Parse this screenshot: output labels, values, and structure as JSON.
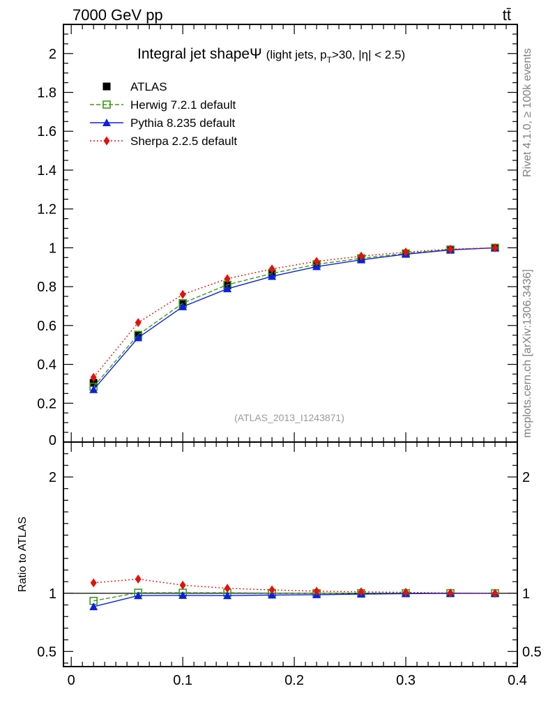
{
  "header": {
    "left": "7000 GeV pp",
    "right": "tt̄"
  },
  "side_text": {
    "rivet": "Rivet 4.1.0, ≥ 100k events",
    "mcplots": "mcplots.cern.ch [arXiv:1306.3436]"
  },
  "chart_data": {
    "type": "line",
    "title": "Integral jet shape",
    "title_symbol": "Ψ",
    "subtitle_parts": {
      "a": "(light jets, p",
      "sub": "T",
      "b": ">30, |η| < 2.5)"
    },
    "analysis_id": "(ATLAS_2013_I1243871)",
    "xlabel": "",
    "ylabel_ratio": "Ratio to ATLAS",
    "xlim": [
      -0.007,
      0.4
    ],
    "ylim_main": [
      0,
      2.15
    ],
    "ylim_ratio": [
      0.37,
      2.3
    ],
    "x_ticks": [
      {
        "v": 0,
        "label": "0"
      },
      {
        "v": 0.1,
        "label": "0.1"
      },
      {
        "v": 0.2,
        "label": "0.2"
      },
      {
        "v": 0.3,
        "label": "0.3"
      },
      {
        "v": 0.4,
        "label": "0.4"
      }
    ],
    "y_ticks_main": [
      {
        "v": 0.2,
        "label": "0.2"
      },
      {
        "v": 0.4,
        "label": "0.4"
      },
      {
        "v": 0.6,
        "label": "0.6"
      },
      {
        "v": 0.8,
        "label": "0.8"
      },
      {
        "v": 1.0,
        "label": "1"
      },
      {
        "v": 1.2,
        "label": "1.2"
      },
      {
        "v": 1.4,
        "label": "1.4"
      },
      {
        "v": 1.6,
        "label": "1.6"
      },
      {
        "v": 1.8,
        "label": "1.8"
      },
      {
        "v": 2.0,
        "label": "2"
      }
    ],
    "y_ticks_ratio": [
      {
        "v": 0.5,
        "label": "0.5"
      },
      {
        "v": 1.0,
        "label": "1"
      },
      {
        "v": 2.0,
        "label": "2"
      }
    ],
    "x": [
      0.02,
      0.06,
      0.1,
      0.14,
      0.18,
      0.22,
      0.26,
      0.3,
      0.34,
      0.38
    ],
    "series": [
      {
        "name": "ATLAS",
        "color": "#000000",
        "marker": "square",
        "values": [
          0.305,
          0.548,
          0.71,
          0.806,
          0.866,
          0.914,
          0.945,
          0.97,
          0.99,
          1.0
        ]
      },
      {
        "name": "Herwig 7.2.1 default",
        "color": "#3a9a14",
        "marker": "open-square",
        "line": "dashed",
        "values": [
          0.285,
          0.552,
          0.715,
          0.81,
          0.868,
          0.915,
          0.946,
          0.971,
          0.991,
          1.0
        ]
      },
      {
        "name": "Pythia 8.235 default",
        "color": "#0a1fe8",
        "marker": "triangle",
        "line": "solid",
        "values": [
          0.27,
          0.537,
          0.697,
          0.789,
          0.853,
          0.903,
          0.938,
          0.967,
          0.989,
          1.0
        ]
      },
      {
        "name": "Sherpa 2.2.5 default",
        "color": "#e8100a",
        "marker": "diamond",
        "line": "dotted",
        "values": [
          0.333,
          0.615,
          0.76,
          0.841,
          0.891,
          0.93,
          0.957,
          0.978,
          0.993,
          1.0
        ]
      }
    ],
    "ratio_series": [
      {
        "name": "Herwig 7.2.1 default",
        "values": [
          0.935,
          1.005,
          1.005,
          1.005,
          1.002,
          1.001,
          1.001,
          1.001,
          1.001,
          1.0
        ]
      },
      {
        "name": "Pythia 8.235 default",
        "values": [
          0.885,
          0.98,
          0.982,
          0.98,
          0.985,
          0.988,
          0.993,
          0.997,
          0.999,
          1.0
        ]
      },
      {
        "name": "Sherpa 2.2.5 default",
        "values": [
          1.09,
          1.122,
          1.07,
          1.043,
          1.029,
          1.018,
          1.013,
          1.008,
          1.003,
          1.0
        ]
      }
    ]
  }
}
